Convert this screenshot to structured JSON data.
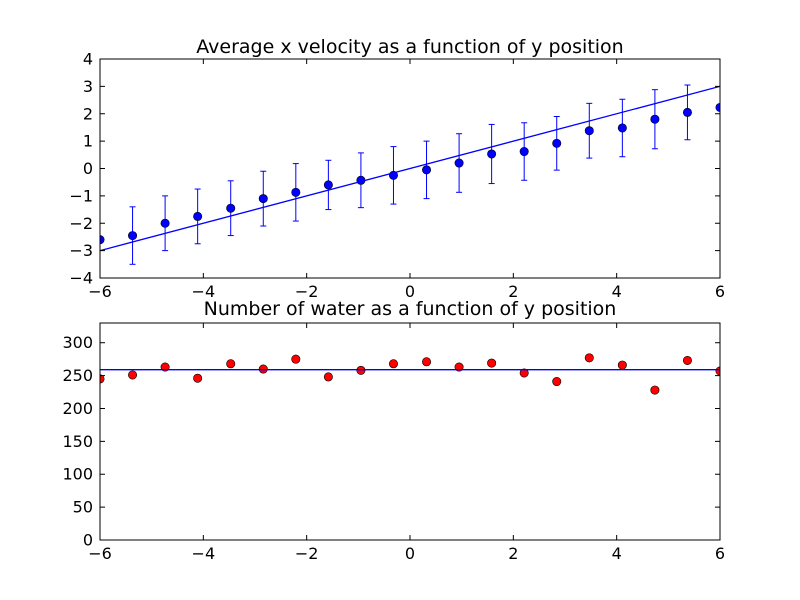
{
  "chart_data": [
    {
      "type": "scatter",
      "title": "Average x velocity as a function of y position",
      "xlabel": "",
      "ylabel": "",
      "xlim": [
        -6,
        6
      ],
      "ylim": [
        -4,
        4
      ],
      "xticks": [
        -6,
        -4,
        -2,
        0,
        2,
        4,
        6
      ],
      "xtick_labels": [
        "−6",
        "−4",
        "−2",
        "0",
        "2",
        "4",
        "6"
      ],
      "yticks": [
        -4,
        -3,
        -2,
        -1,
        0,
        1,
        2,
        3,
        4
      ],
      "ytick_labels": [
        "−4",
        "−3",
        "−2",
        "−1",
        "0",
        "1",
        "2",
        "3",
        "4"
      ],
      "grid": false,
      "series": [
        {
          "kind": "errorbar",
          "color": "#0000ff",
          "x": [
            -6.0,
            -5.37,
            -4.74,
            -4.11,
            -3.47,
            -2.84,
            -2.21,
            -1.58,
            -0.95,
            -0.32,
            0.32,
            0.95,
            1.58,
            2.21,
            2.84,
            3.47,
            4.11,
            4.74,
            5.37,
            6.0
          ],
          "y": [
            -2.6,
            -2.45,
            -2.0,
            -1.75,
            -1.45,
            -1.1,
            -0.87,
            -0.6,
            -0.43,
            -0.25,
            -0.05,
            0.2,
            0.53,
            0.62,
            0.92,
            1.38,
            1.48,
            1.8,
            2.05,
            2.23
          ],
          "err": [
            0,
            1.05,
            1.0,
            1.0,
            1.0,
            1.0,
            1.05,
            0.9,
            1.0,
            1.05,
            1.05,
            1.07,
            1.08,
            1.05,
            0.98,
            1.0,
            1.05,
            1.08,
            1.0,
            0
          ]
        },
        {
          "kind": "line",
          "color": "#0000ff",
          "x": [
            -6,
            6
          ],
          "y": [
            -3,
            3
          ]
        }
      ]
    },
    {
      "type": "scatter",
      "title": "Number of water as a function of y position",
      "xlabel": "",
      "ylabel": "",
      "xlim": [
        -6,
        6
      ],
      "ylim": [
        0,
        330
      ],
      "xticks": [
        -6,
        -4,
        -2,
        0,
        2,
        4,
        6
      ],
      "xtick_labels": [
        "−6",
        "−4",
        "−2",
        "0",
        "2",
        "4",
        "6"
      ],
      "yticks": [
        0,
        50,
        100,
        150,
        200,
        250,
        300
      ],
      "ytick_labels": [
        "0",
        "50",
        "100",
        "150",
        "200",
        "250",
        "300"
      ],
      "grid": false,
      "series": [
        {
          "kind": "points",
          "color": "#ff0000",
          "x": [
            -6.0,
            -5.37,
            -4.74,
            -4.11,
            -3.47,
            -2.84,
            -2.21,
            -1.58,
            -0.95,
            -0.32,
            0.32,
            0.95,
            1.58,
            2.21,
            2.84,
            3.47,
            4.11,
            4.74,
            5.37,
            6.0
          ],
          "y": [
            245,
            251,
            263,
            246,
            268,
            260,
            275,
            248,
            258,
            268,
            271,
            263,
            269,
            254,
            241,
            277,
            266,
            228,
            273,
            257
          ]
        },
        {
          "kind": "line",
          "color": "#0000ff",
          "x": [
            -6,
            6
          ],
          "y": [
            259,
            259
          ]
        }
      ]
    }
  ]
}
